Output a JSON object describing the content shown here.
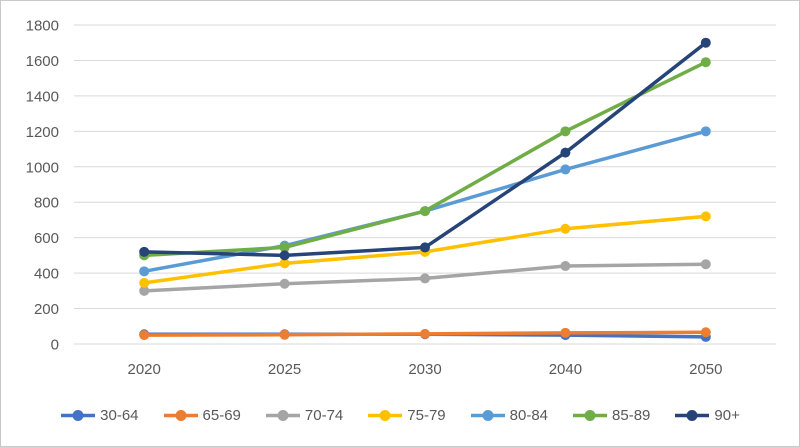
{
  "chart_data": {
    "type": "line",
    "title": "",
    "categories": [
      "2020",
      "2025",
      "2030",
      "2040",
      "2050"
    ],
    "series": [
      {
        "name": "30-64",
        "color": "#4472C4",
        "values": [
          55,
          55,
          55,
          50,
          40
        ]
      },
      {
        "name": "65-69",
        "color": "#ED7D31",
        "values": [
          50,
          52,
          57,
          63,
          66
        ]
      },
      {
        "name": "70-74",
        "color": "#A5A5A5",
        "values": [
          300,
          340,
          370,
          440,
          450
        ]
      },
      {
        "name": "75-79",
        "color": "#FFC000",
        "values": [
          345,
          455,
          520,
          650,
          720
        ]
      },
      {
        "name": "80-84",
        "color": "#5B9BD5",
        "values": [
          410,
          555,
          750,
          985,
          1200
        ]
      },
      {
        "name": "85-89",
        "color": "#70AD47",
        "values": [
          500,
          545,
          750,
          1200,
          1590
        ]
      },
      {
        "name": "90+",
        "color": "#264478",
        "values": [
          520,
          500,
          545,
          1080,
          1700
        ]
      }
    ],
    "xlabel": "",
    "ylabel": "",
    "ylim": [
      0,
      1800
    ],
    "ytick_step": 200,
    "y_tick_labels": [
      "0",
      "200",
      "400",
      "600",
      "800",
      "1000",
      "1200",
      "1400",
      "1600",
      "1800"
    ],
    "grid": true,
    "legend_position": "bottom",
    "grid_color": "#D9D9D9",
    "axis_text_color": "#595959"
  }
}
